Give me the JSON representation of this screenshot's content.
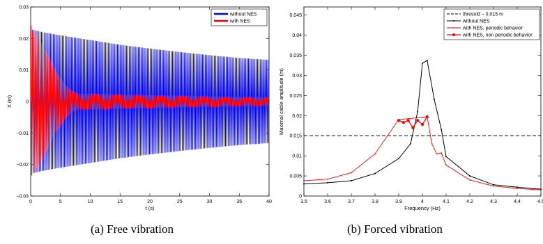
{
  "chart_data": [
    {
      "type": "line",
      "caption": "(a) Free vibration",
      "xlabel": "t (s)",
      "ylabel": "X (m)",
      "xlim": [
        0,
        40
      ],
      "ylim": [
        -0.03,
        0.03
      ],
      "xticks": [
        0,
        5,
        10,
        15,
        20,
        25,
        30,
        35,
        40
      ],
      "yticks": [
        -0.03,
        -0.02,
        -0.01,
        0,
        0.01,
        0.02,
        0.03
      ],
      "xtick_labels": [
        "0",
        "5",
        "10",
        "15",
        "20",
        "25",
        "30",
        "35",
        "40"
      ],
      "ytick_labels": [
        "−0.03",
        "−0.02",
        "−0.01",
        "0",
        "0.01",
        "0.02",
        "0.03"
      ],
      "legend_position": "top-right",
      "series": [
        {
          "name": "without NES",
          "color": "#0000ff",
          "envelope_t": [
            0,
            0.3,
            2,
            5,
            10,
            15,
            20,
            25,
            30,
            35,
            40
          ],
          "envelope_amplitude": [
            0.0245,
            0.0228,
            0.022,
            0.021,
            0.0195,
            0.018,
            0.0168,
            0.0157,
            0.0147,
            0.0138,
            0.0132
          ]
        },
        {
          "name": "with NES",
          "color": "#ff0000",
          "envelope_t": [
            0,
            0.3,
            1,
            2,
            3,
            4,
            5,
            6,
            7,
            8,
            9,
            10,
            12,
            15,
            20,
            25,
            30,
            35,
            40
          ],
          "envelope_amplitude": [
            0.0245,
            0.0228,
            0.021,
            0.018,
            0.0145,
            0.0105,
            0.0075,
            0.005,
            0.0034,
            0.0025,
            0.0023,
            0.0025,
            0.0024,
            0.0022,
            0.002,
            0.0018,
            0.0016,
            0.0014,
            0.0013
          ]
        }
      ]
    },
    {
      "type": "line",
      "caption": "(b) Forced vibration",
      "xlabel": "Frequency (Hz)",
      "ylabel": "Maximal cable amplitude (m)",
      "xlim": [
        3.5,
        4.5
      ],
      "ylim": [
        0,
        0.047
      ],
      "xticks": [
        3.5,
        3.6,
        3.7,
        3.8,
        3.9,
        4.0,
        4.1,
        4.2,
        4.3,
        4.4,
        4.5
      ],
      "yticks": [
        0,
        0.005,
        0.01,
        0.015,
        0.02,
        0.025,
        0.03,
        0.035,
        0.04,
        0.045
      ],
      "xtick_labels": [
        "3.5",
        "3.6",
        "3.7",
        "3.8",
        "3.9",
        "4",
        "4.1",
        "4.2",
        "4.3",
        "4.4",
        "4.5"
      ],
      "ytick_labels": [
        "0",
        "0.005",
        "0.01",
        "0.015",
        "0.02",
        "0.025",
        "0.03",
        "0.035",
        "0.04",
        "0.045"
      ],
      "legend_position": "top-right",
      "series": [
        {
          "name": "thresold – 0.015 m",
          "color": "#000000",
          "style": "dashed",
          "x": [
            3.5,
            4.5
          ],
          "y": [
            0.015,
            0.015
          ]
        },
        {
          "name": "without NES",
          "color": "#000000",
          "style": "solid-dot",
          "x": [
            3.5,
            3.6,
            3.7,
            3.8,
            3.9,
            3.95,
            3.98,
            4.0,
            4.02,
            4.05,
            4.08,
            4.1,
            4.2,
            4.3,
            4.4,
            4.5
          ],
          "y": [
            0.003,
            0.0033,
            0.0038,
            0.0056,
            0.0093,
            0.013,
            0.021,
            0.033,
            0.0337,
            0.024,
            0.0165,
            0.0098,
            0.005,
            0.0028,
            0.0022,
            0.0017
          ]
        },
        {
          "name": "with NES, periodic behavior",
          "color": "#ff0000",
          "style": "solid-dot",
          "x": [
            3.5,
            3.6,
            3.7,
            3.8,
            3.9,
            4.02,
            4.04,
            4.06,
            4.08,
            4.1,
            4.2,
            4.3,
            4.4,
            4.5
          ],
          "y": [
            0.0038,
            0.0042,
            0.0058,
            0.0105,
            0.019,
            0.0197,
            0.013,
            0.0105,
            0.0107,
            0.0077,
            0.004,
            0.0025,
            0.0019,
            0.0015
          ]
        },
        {
          "name": "with NES, non periodic behavior",
          "color": "#ff0000",
          "style": "solid-marker",
          "x": [
            3.9,
            3.92,
            3.94,
            3.96,
            3.98,
            4.0,
            4.02
          ],
          "y": [
            0.0188,
            0.0183,
            0.0188,
            0.017,
            0.0188,
            0.0178,
            0.0197
          ]
        }
      ]
    }
  ]
}
